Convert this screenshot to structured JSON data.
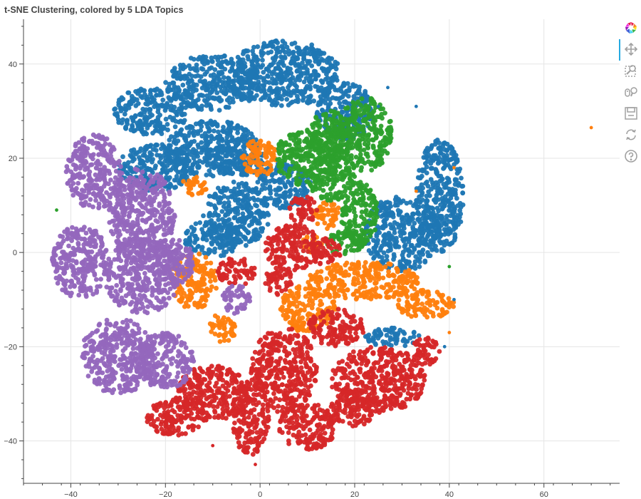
{
  "chart_data": {
    "type": "scatter",
    "title": "t-SNE Clustering, colored by 5 LDA Topics",
    "xlabel": "",
    "ylabel": "",
    "xlim": [
      -50,
      76
    ],
    "ylim": [
      -49,
      49.5
    ],
    "x_ticks": [
      -40,
      -20,
      0,
      20,
      40,
      60
    ],
    "y_ticks": [
      -40,
      -20,
      0,
      20,
      40
    ],
    "grid": true,
    "legend": "none",
    "colors": [
      "#1f77b4",
      "#ff7f0e",
      "#2ca02c",
      "#d62728",
      "#9467bd"
    ],
    "topics": [
      {
        "color": "#1f77b4",
        "regions": [
          [
            -23,
            30,
            8,
            5
          ],
          [
            -10,
            36,
            10,
            6
          ],
          [
            5,
            38,
            12,
            7
          ],
          [
            18,
            30,
            6,
            6
          ],
          [
            -5,
            20,
            6,
            4
          ],
          [
            -10,
            22,
            10,
            6
          ],
          [
            -22,
            18,
            8,
            5
          ],
          [
            -5,
            8,
            7,
            7
          ],
          [
            5,
            14,
            6,
            5
          ],
          [
            -10,
            3,
            6,
            4
          ],
          [
            30,
            4,
            8,
            8
          ],
          [
            38,
            12,
            5,
            12
          ],
          [
            28,
            -18,
            6,
            2
          ]
        ]
      },
      {
        "color": "#ff7f0e",
        "regions": [
          [
            0,
            20,
            4,
            4
          ],
          [
            -14,
            14,
            3,
            2
          ],
          [
            -14,
            -6,
            5,
            6
          ],
          [
            -8,
            -16,
            3,
            3
          ],
          [
            14,
            8,
            3,
            3
          ],
          [
            10,
            -12,
            6,
            5
          ],
          [
            22,
            -6,
            12,
            4
          ],
          [
            35,
            -11,
            6,
            3
          ],
          [
            11,
            2,
            2,
            2
          ]
        ]
      },
      {
        "color": "#2ca02c",
        "regions": [
          [
            10,
            20,
            7,
            6
          ],
          [
            15,
            16,
            5,
            5
          ],
          [
            22,
            25,
            6,
            8
          ],
          [
            21,
            8,
            4,
            7
          ],
          [
            18,
            2,
            4,
            3
          ],
          [
            15,
            25,
            5,
            5
          ]
        ]
      },
      {
        "color": "#d62728",
        "regions": [
          [
            -5,
            -4,
            4,
            3
          ],
          [
            7,
            1,
            6,
            5
          ],
          [
            9,
            9,
            3,
            3
          ],
          [
            14,
            0,
            3,
            3
          ],
          [
            -10,
            -30,
            8,
            6
          ],
          [
            -18,
            -35,
            6,
            4
          ],
          [
            5,
            -25,
            7,
            9
          ],
          [
            -2,
            -35,
            4,
            8
          ],
          [
            16,
            -16,
            6,
            4
          ],
          [
            25,
            -27,
            10,
            7
          ],
          [
            35,
            -21,
            3,
            3
          ],
          [
            10,
            -37,
            6,
            5
          ],
          [
            20,
            -33,
            5,
            4
          ],
          [
            4,
            -6,
            3,
            3
          ]
        ]
      },
      {
        "color": "#9467bd",
        "regions": [
          [
            -35,
            17,
            6,
            8
          ],
          [
            -25,
            8,
            7,
            10
          ],
          [
            -38,
            -2,
            6,
            8
          ],
          [
            -25,
            -5,
            8,
            8
          ],
          [
            -30,
            -22,
            8,
            8
          ],
          [
            -20,
            -23,
            6,
            6
          ],
          [
            -18,
            -2,
            4,
            5
          ],
          [
            -5,
            -10,
            3,
            3
          ]
        ]
      }
    ],
    "outliers": [
      {
        "x": 70,
        "y": 26.5,
        "color": "#ff7f0e"
      },
      {
        "x": -43,
        "y": 9,
        "color": "#2ca02c"
      },
      {
        "x": -10,
        "y": -41,
        "color": "#d62728"
      },
      {
        "x": -1,
        "y": -45,
        "color": "#d62728"
      },
      {
        "x": 27,
        "y": 35,
        "color": "#1f77b4"
      },
      {
        "x": 25,
        "y": 31,
        "color": "#1f77b4"
      },
      {
        "x": 33,
        "y": 31,
        "color": "#1f77b4"
      },
      {
        "x": 41,
        "y": 18,
        "color": "#ff7f0e"
      },
      {
        "x": 33,
        "y": 13,
        "color": "#ff7f0e"
      },
      {
        "x": 40,
        "y": -3,
        "color": "#2ca02c"
      },
      {
        "x": 40,
        "y": -17,
        "color": "#ff7f0e"
      },
      {
        "x": 41,
        "y": -10,
        "color": "#1f77b4"
      },
      {
        "x": 39,
        "y": -20,
        "color": "#1f77b4"
      },
      {
        "x": 31,
        "y": -19,
        "color": "#1f77b4"
      }
    ]
  },
  "toolbar": {
    "tools": [
      {
        "name": "bokeh-logo",
        "icon": "bokeh-logo-icon"
      },
      {
        "name": "pan",
        "icon": "pan-icon"
      },
      {
        "name": "box-zoom",
        "icon": "box-zoom-icon"
      },
      {
        "name": "wheel-zoom",
        "icon": "wheel-zoom-icon"
      },
      {
        "name": "save",
        "icon": "save-icon"
      },
      {
        "name": "reset",
        "icon": "reset-icon"
      },
      {
        "name": "help",
        "icon": "help-icon"
      }
    ]
  }
}
